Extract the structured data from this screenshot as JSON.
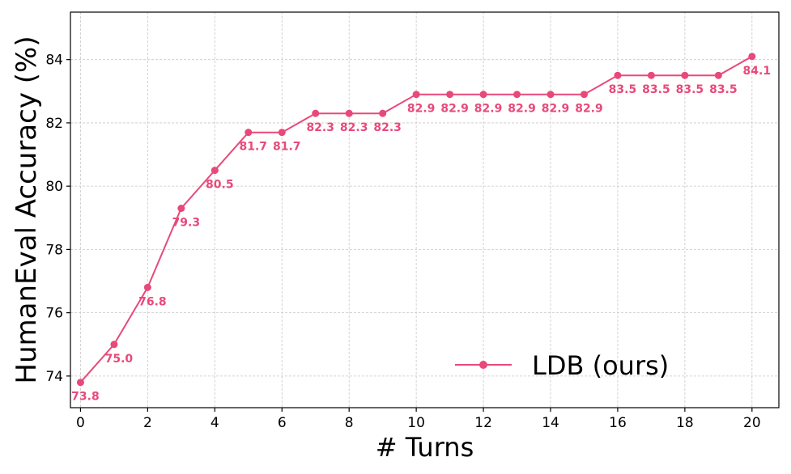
{
  "chart_data": {
    "type": "line",
    "xlabel": "# Turns",
    "ylabel": "HumanEval Accuracy (%)",
    "xlim": [
      -0.3,
      20.8
    ],
    "ylim": [
      73,
      85.5
    ],
    "xticks": [
      0,
      2,
      4,
      6,
      8,
      10,
      12,
      14,
      16,
      18,
      20
    ],
    "yticks": [
      74,
      76,
      78,
      80,
      82,
      84
    ],
    "grid": true,
    "legend_position": "lower-right",
    "series": [
      {
        "name": "LDB (ours)",
        "color": "#e8497a",
        "x": [
          0,
          1,
          2,
          3,
          4,
          5,
          6,
          7,
          8,
          9,
          10,
          11,
          12,
          13,
          14,
          15,
          16,
          17,
          18,
          19,
          20
        ],
        "values": [
          73.8,
          75.0,
          76.8,
          79.3,
          80.5,
          81.7,
          81.7,
          82.3,
          82.3,
          82.3,
          82.9,
          82.9,
          82.9,
          82.9,
          82.9,
          82.9,
          83.5,
          83.5,
          83.5,
          83.5,
          84.1
        ],
        "labels": [
          "73.8",
          "75.0",
          "76.8",
          "79.3",
          "80.5",
          "81.7",
          "81.7",
          "82.3",
          "82.3",
          "82.3",
          "82.9",
          "82.9",
          "82.9",
          "82.9",
          "82.9",
          "82.9",
          "83.5",
          "83.5",
          "83.5",
          "83.5",
          "84.1"
        ]
      }
    ]
  }
}
